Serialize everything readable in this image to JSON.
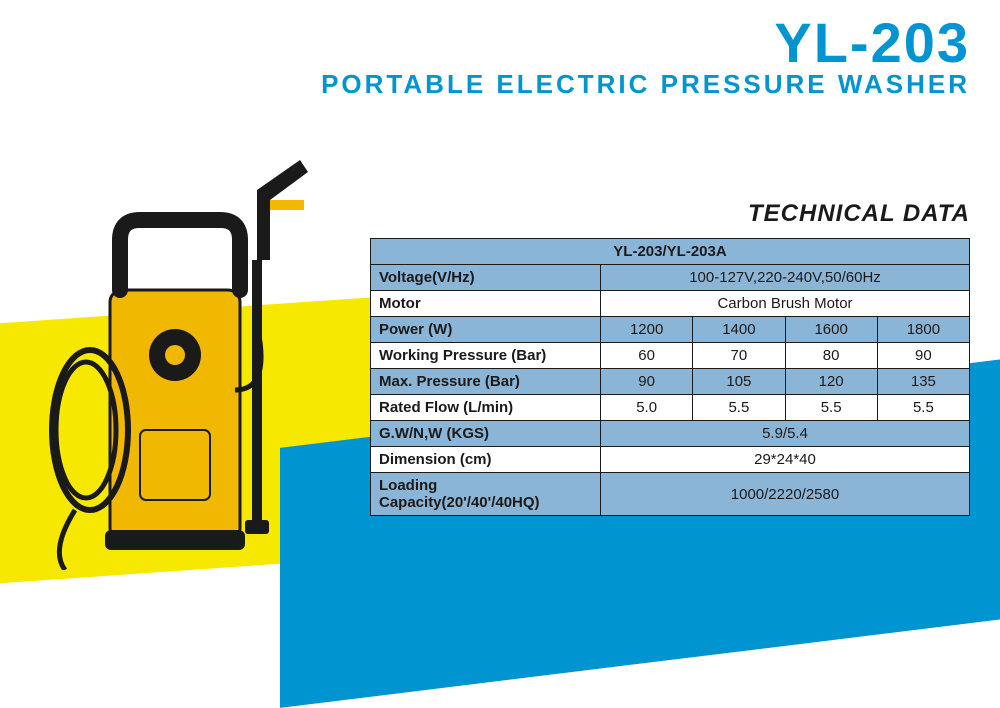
{
  "header": {
    "model": "YL-203",
    "subtitle": "PORTABLE ELECTRIC PRESSURE WASHER"
  },
  "colors": {
    "accent_blue": "#0095d0",
    "accent_yellow": "#f7e800",
    "table_alt_row": "#8bb5d6",
    "table_border": "#1a1a1a",
    "text": "#1a1a1a",
    "background": "#ffffff"
  },
  "tech_title": "TECHNICAL DATA",
  "table": {
    "title": "YL-203/YL-203A",
    "rows": [
      {
        "label": "Voltage(V/Hz)",
        "span": true,
        "value": "100-127V,220-240V,50/60Hz",
        "alt": true
      },
      {
        "label": "Motor",
        "span": true,
        "value": "Carbon Brush Motor",
        "alt": false
      },
      {
        "label": "Power (W)",
        "span": false,
        "values": [
          "1200",
          "1400",
          "1600",
          "1800"
        ],
        "alt": true
      },
      {
        "label": "Working Pressure (Bar)",
        "span": false,
        "values": [
          "60",
          "70",
          "80",
          "90"
        ],
        "alt": false
      },
      {
        "label": "Max. Pressure (Bar)",
        "span": false,
        "values": [
          "90",
          "105",
          "120",
          "135"
        ],
        "alt": true
      },
      {
        "label": "Rated Flow (L/min)",
        "span": false,
        "values": [
          "5.0",
          "5.5",
          "5.5",
          "5.5"
        ],
        "alt": false
      },
      {
        "label": "G.W/N,W (KGS)",
        "span": true,
        "value": "5.9/5.4",
        "alt": true
      },
      {
        "label": "Dimension (cm)",
        "span": true,
        "value": "29*24*40",
        "alt": false
      },
      {
        "label": "Loading Capacity(20'/40'/40HQ)",
        "span": true,
        "value": "1000/2220/2580",
        "alt": true
      }
    ]
  },
  "product_image": {
    "body_color": "#f0b800",
    "trim_color": "#1a1a1a"
  }
}
